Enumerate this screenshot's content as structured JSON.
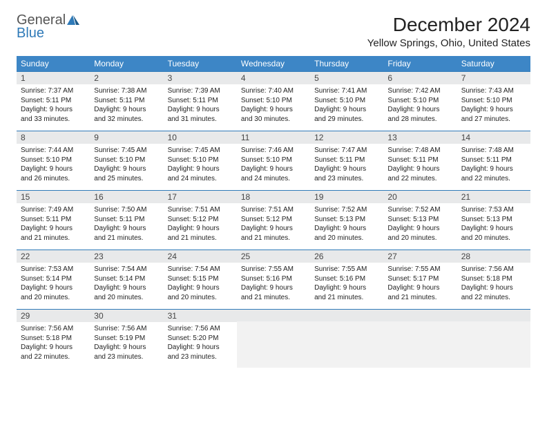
{
  "brand": {
    "general": "General",
    "blue": "Blue"
  },
  "header": {
    "month_title": "December 2024",
    "location": "Yellow Springs, Ohio, United States"
  },
  "colors": {
    "header_bg": "#3d86c6",
    "header_text": "#ffffff",
    "row_divider": "#2f7ab8",
    "daynum_bg": "#e8e9ea",
    "logo_blue": "#2f7ab8",
    "logo_gray": "#555555"
  },
  "weekdays": [
    "Sunday",
    "Monday",
    "Tuesday",
    "Wednesday",
    "Thursday",
    "Friday",
    "Saturday"
  ],
  "days": [
    {
      "n": "1",
      "sunrise": "Sunrise: 7:37 AM",
      "sunset": "Sunset: 5:11 PM",
      "daylight": "Daylight: 9 hours and 33 minutes."
    },
    {
      "n": "2",
      "sunrise": "Sunrise: 7:38 AM",
      "sunset": "Sunset: 5:11 PM",
      "daylight": "Daylight: 9 hours and 32 minutes."
    },
    {
      "n": "3",
      "sunrise": "Sunrise: 7:39 AM",
      "sunset": "Sunset: 5:11 PM",
      "daylight": "Daylight: 9 hours and 31 minutes."
    },
    {
      "n": "4",
      "sunrise": "Sunrise: 7:40 AM",
      "sunset": "Sunset: 5:10 PM",
      "daylight": "Daylight: 9 hours and 30 minutes."
    },
    {
      "n": "5",
      "sunrise": "Sunrise: 7:41 AM",
      "sunset": "Sunset: 5:10 PM",
      "daylight": "Daylight: 9 hours and 29 minutes."
    },
    {
      "n": "6",
      "sunrise": "Sunrise: 7:42 AM",
      "sunset": "Sunset: 5:10 PM",
      "daylight": "Daylight: 9 hours and 28 minutes."
    },
    {
      "n": "7",
      "sunrise": "Sunrise: 7:43 AM",
      "sunset": "Sunset: 5:10 PM",
      "daylight": "Daylight: 9 hours and 27 minutes."
    },
    {
      "n": "8",
      "sunrise": "Sunrise: 7:44 AM",
      "sunset": "Sunset: 5:10 PM",
      "daylight": "Daylight: 9 hours and 26 minutes."
    },
    {
      "n": "9",
      "sunrise": "Sunrise: 7:45 AM",
      "sunset": "Sunset: 5:10 PM",
      "daylight": "Daylight: 9 hours and 25 minutes."
    },
    {
      "n": "10",
      "sunrise": "Sunrise: 7:45 AM",
      "sunset": "Sunset: 5:10 PM",
      "daylight": "Daylight: 9 hours and 24 minutes."
    },
    {
      "n": "11",
      "sunrise": "Sunrise: 7:46 AM",
      "sunset": "Sunset: 5:10 PM",
      "daylight": "Daylight: 9 hours and 24 minutes."
    },
    {
      "n": "12",
      "sunrise": "Sunrise: 7:47 AM",
      "sunset": "Sunset: 5:11 PM",
      "daylight": "Daylight: 9 hours and 23 minutes."
    },
    {
      "n": "13",
      "sunrise": "Sunrise: 7:48 AM",
      "sunset": "Sunset: 5:11 PM",
      "daylight": "Daylight: 9 hours and 22 minutes."
    },
    {
      "n": "14",
      "sunrise": "Sunrise: 7:48 AM",
      "sunset": "Sunset: 5:11 PM",
      "daylight": "Daylight: 9 hours and 22 minutes."
    },
    {
      "n": "15",
      "sunrise": "Sunrise: 7:49 AM",
      "sunset": "Sunset: 5:11 PM",
      "daylight": "Daylight: 9 hours and 21 minutes."
    },
    {
      "n": "16",
      "sunrise": "Sunrise: 7:50 AM",
      "sunset": "Sunset: 5:11 PM",
      "daylight": "Daylight: 9 hours and 21 minutes."
    },
    {
      "n": "17",
      "sunrise": "Sunrise: 7:51 AM",
      "sunset": "Sunset: 5:12 PM",
      "daylight": "Daylight: 9 hours and 21 minutes."
    },
    {
      "n": "18",
      "sunrise": "Sunrise: 7:51 AM",
      "sunset": "Sunset: 5:12 PM",
      "daylight": "Daylight: 9 hours and 21 minutes."
    },
    {
      "n": "19",
      "sunrise": "Sunrise: 7:52 AM",
      "sunset": "Sunset: 5:13 PM",
      "daylight": "Daylight: 9 hours and 20 minutes."
    },
    {
      "n": "20",
      "sunrise": "Sunrise: 7:52 AM",
      "sunset": "Sunset: 5:13 PM",
      "daylight": "Daylight: 9 hours and 20 minutes."
    },
    {
      "n": "21",
      "sunrise": "Sunrise: 7:53 AM",
      "sunset": "Sunset: 5:13 PM",
      "daylight": "Daylight: 9 hours and 20 minutes."
    },
    {
      "n": "22",
      "sunrise": "Sunrise: 7:53 AM",
      "sunset": "Sunset: 5:14 PM",
      "daylight": "Daylight: 9 hours and 20 minutes."
    },
    {
      "n": "23",
      "sunrise": "Sunrise: 7:54 AM",
      "sunset": "Sunset: 5:14 PM",
      "daylight": "Daylight: 9 hours and 20 minutes."
    },
    {
      "n": "24",
      "sunrise": "Sunrise: 7:54 AM",
      "sunset": "Sunset: 5:15 PM",
      "daylight": "Daylight: 9 hours and 20 minutes."
    },
    {
      "n": "25",
      "sunrise": "Sunrise: 7:55 AM",
      "sunset": "Sunset: 5:16 PM",
      "daylight": "Daylight: 9 hours and 21 minutes."
    },
    {
      "n": "26",
      "sunrise": "Sunrise: 7:55 AM",
      "sunset": "Sunset: 5:16 PM",
      "daylight": "Daylight: 9 hours and 21 minutes."
    },
    {
      "n": "27",
      "sunrise": "Sunrise: 7:55 AM",
      "sunset": "Sunset: 5:17 PM",
      "daylight": "Daylight: 9 hours and 21 minutes."
    },
    {
      "n": "28",
      "sunrise": "Sunrise: 7:56 AM",
      "sunset": "Sunset: 5:18 PM",
      "daylight": "Daylight: 9 hours and 22 minutes."
    },
    {
      "n": "29",
      "sunrise": "Sunrise: 7:56 AM",
      "sunset": "Sunset: 5:18 PM",
      "daylight": "Daylight: 9 hours and 22 minutes."
    },
    {
      "n": "30",
      "sunrise": "Sunrise: 7:56 AM",
      "sunset": "Sunset: 5:19 PM",
      "daylight": "Daylight: 9 hours and 23 minutes."
    },
    {
      "n": "31",
      "sunrise": "Sunrise: 7:56 AM",
      "sunset": "Sunset: 5:20 PM",
      "daylight": "Daylight: 9 hours and 23 minutes."
    }
  ]
}
